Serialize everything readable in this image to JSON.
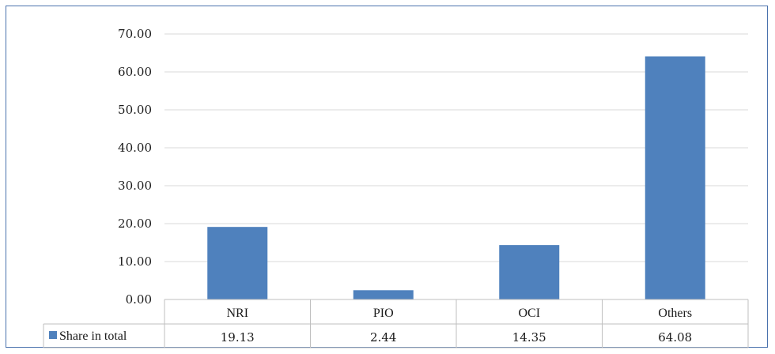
{
  "chart_data": {
    "type": "bar",
    "categories": [
      "NRI",
      "PIO",
      "OCI",
      "Others"
    ],
    "series": [
      {
        "name": "Share in total",
        "values": [
          19.13,
          2.44,
          14.35,
          64.08
        ]
      }
    ],
    "data_labels": [
      "19.13",
      "2.44",
      "14.35",
      "64.08"
    ],
    "yticks": [
      "0.00",
      "10.00",
      "20.00",
      "30.00",
      "40.00",
      "50.00",
      "60.00",
      "70.00"
    ],
    "ylim": [
      0,
      70
    ],
    "grid": true,
    "legend": "data-table",
    "colors": {
      "bar": "#4f81bd",
      "grid": "#d9d9d9",
      "table_border": "#bfbfbf",
      "frame": "#4a72ad"
    }
  }
}
